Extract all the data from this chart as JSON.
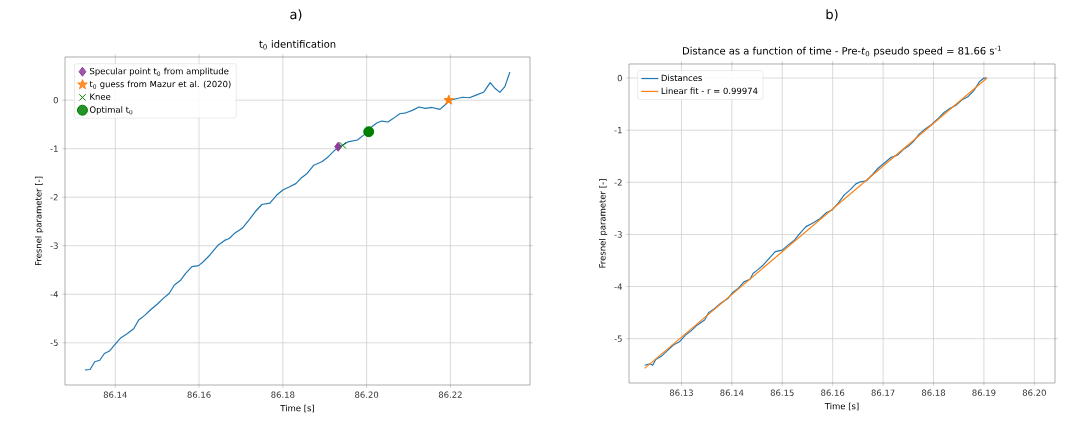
{
  "chart_data": [
    {
      "type": "line",
      "annotations": [
        "a)"
      ],
      "title": "t$_{0}$ identification",
      "xlabel": "Time [s]",
      "ylabel": "Fresnel parameter [-]",
      "xlim": [
        86.128,
        86.239
      ],
      "ylim": [
        -5.87,
        0.89
      ],
      "xticks": [
        86.14,
        86.16,
        86.18,
        {
          "value": 86.2,
          "label": "86.20"
        },
        86.22
      ],
      "yticks": [
        -5,
        -4,
        -3,
        -2,
        -1,
        0
      ],
      "grid": true,
      "legend": "top left",
      "series": [
        {
          "color": "#1f77b4",
          "x": [
            86.1328,
            86.134,
            86.1351,
            86.1363,
            86.1374,
            86.1386,
            86.1398,
            86.1413,
            86.1429,
            86.1444,
            86.1456,
            86.1471,
            86.1483,
            86.1502,
            86.1514,
            86.1529,
            86.1541,
            86.1556,
            86.1568,
            86.1583,
            86.1599,
            86.161,
            86.1626,
            86.1645,
            86.1661,
            86.1672,
            86.1684,
            86.1703,
            86.1719,
            86.1734,
            86.175,
            86.1769,
            86.1785,
            86.18,
            86.1815,
            86.1831,
            86.1843,
            86.1858,
            86.1874,
            86.1893,
            86.1908,
            86.1924,
            86.1939,
            86.1955,
            86.1978,
            86.1993,
            86.2008,
            86.2024,
            86.2036,
            86.2051,
            86.2063,
            86.2079,
            86.2094,
            86.2109,
            86.2125,
            86.214,
            86.2156,
            86.2175,
            86.2187,
            86.2198,
            86.2214,
            86.2229,
            86.2245,
            86.226,
            86.228,
            86.2295,
            86.2307,
            86.2318,
            86.233,
            86.2342
          ],
          "values": [
            -5.56,
            -5.55,
            -5.39,
            -5.36,
            -5.22,
            -5.17,
            -5.05,
            -4.9,
            -4.81,
            -4.71,
            -4.53,
            -4.43,
            -4.33,
            -4.19,
            -4.09,
            -3.98,
            -3.81,
            -3.71,
            -3.57,
            -3.43,
            -3.41,
            -3.33,
            -3.19,
            -2.99,
            -2.89,
            -2.85,
            -2.75,
            -2.64,
            -2.47,
            -2.3,
            -2.15,
            -2.12,
            -1.96,
            -1.85,
            -1.79,
            -1.72,
            -1.61,
            -1.51,
            -1.34,
            -1.27,
            -1.17,
            -1.03,
            -0.95,
            -0.86,
            -0.82,
            -0.72,
            -0.58,
            -0.47,
            -0.43,
            -0.45,
            -0.38,
            -0.28,
            -0.26,
            -0.21,
            -0.14,
            -0.17,
            -0.15,
            -0.19,
            -0.1,
            0.0,
            0.03,
            0.06,
            0.05,
            0.1,
            0.17,
            0.36,
            0.24,
            0.16,
            0.28,
            0.58
          ]
        },
        {
          "type": "scatter",
          "name": "Specular point t$_{0}$ from amplitude",
          "marker": "diamond",
          "color": "#8e3b9a",
          "x": [
            86.1932
          ],
          "values": [
            -0.96
          ]
        },
        {
          "type": "scatter",
          "name": "t$_{0}$ guess from Mazur et al. (2020)",
          "marker": "star",
          "color": "#ff7f0e",
          "x": [
            86.2196
          ],
          "values": [
            0.0
          ]
        },
        {
          "type": "scatter",
          "name": "Knee",
          "marker": "cross",
          "color": "#008000",
          "x": [
            86.1943
          ],
          "values": [
            -0.93
          ]
        },
        {
          "type": "scatter",
          "name": "Optimal t$_{0}$",
          "marker": "circle",
          "color": "#008000",
          "x": [
            86.2005
          ],
          "values": [
            -0.65
          ]
        }
      ]
    },
    {
      "type": "line",
      "annotations": [
        "b)"
      ],
      "title": "Distance as a function of time - Pre-*t*$_{0}$ pseudo speed = 81.66 s$^{-1}$",
      "xlabel": "Time [s]",
      "ylabel": "Fresnel parameter [-]",
      "xlim": [
        86.1196,
        86.2041
      ],
      "ylim": [
        -5.85,
        0.27
      ],
      "xticks": [
        86.13,
        86.14,
        86.15,
        86.16,
        86.17,
        86.18,
        86.19,
        {
          "value": 86.2,
          "label": "86.20"
        }
      ],
      "yticks": [
        -5,
        -4,
        -3,
        -2,
        -1,
        0
      ],
      "grid": true,
      "legend": "top left",
      "series": [
        {
          "name": "Distances",
          "color": "#1f77b4",
          "x": [
            86.1227,
            86.1238,
            86.1243,
            86.1249,
            86.1261,
            86.1273,
            86.1284,
            86.1296,
            86.1308,
            86.1319,
            86.1331,
            86.1346,
            86.1354,
            86.1366,
            86.1378,
            86.1392,
            86.1401,
            86.1413,
            86.1424,
            86.1436,
            86.1442,
            86.1451,
            86.1462,
            86.1474,
            86.1486,
            86.15,
            86.1512,
            86.1524,
            86.1535,
            86.1547,
            86.1559,
            86.1573,
            86.1588,
            86.1599,
            86.1611,
            86.1623,
            86.1635,
            86.1646,
            86.1655,
            86.1667,
            86.1678,
            86.169,
            86.1705,
            86.1716,
            86.1728,
            86.174,
            86.1751,
            86.176,
            86.1772,
            86.1783,
            86.1795,
            86.181,
            86.1821,
            86.1833,
            86.1845,
            86.1856,
            86.1868,
            86.188,
            86.1891,
            86.19,
            86.1906
          ],
          "values": [
            -5.51,
            -5.48,
            -5.51,
            -5.4,
            -5.33,
            -5.22,
            -5.12,
            -5.06,
            -4.93,
            -4.85,
            -4.74,
            -4.64,
            -4.5,
            -4.42,
            -4.32,
            -4.23,
            -4.12,
            -4.03,
            -3.91,
            -3.86,
            -3.75,
            -3.68,
            -3.59,
            -3.46,
            -3.33,
            -3.3,
            -3.2,
            -3.11,
            -2.98,
            -2.85,
            -2.79,
            -2.71,
            -2.58,
            -2.53,
            -2.4,
            -2.24,
            -2.14,
            -2.03,
            -1.99,
            -1.97,
            -1.86,
            -1.73,
            -1.61,
            -1.52,
            -1.48,
            -1.37,
            -1.3,
            -1.22,
            -1.07,
            -0.98,
            -0.9,
            -0.77,
            -0.66,
            -0.58,
            -0.52,
            -0.42,
            -0.36,
            -0.24,
            -0.07,
            0.0,
            0.0
          ]
        },
        {
          "name": "Linear fit - r = 0.99974",
          "color": "#ff7f0e",
          "x": [
            86.1227,
            86.1906
          ],
          "values": [
            -5.57,
            0.0
          ]
        }
      ]
    }
  ]
}
